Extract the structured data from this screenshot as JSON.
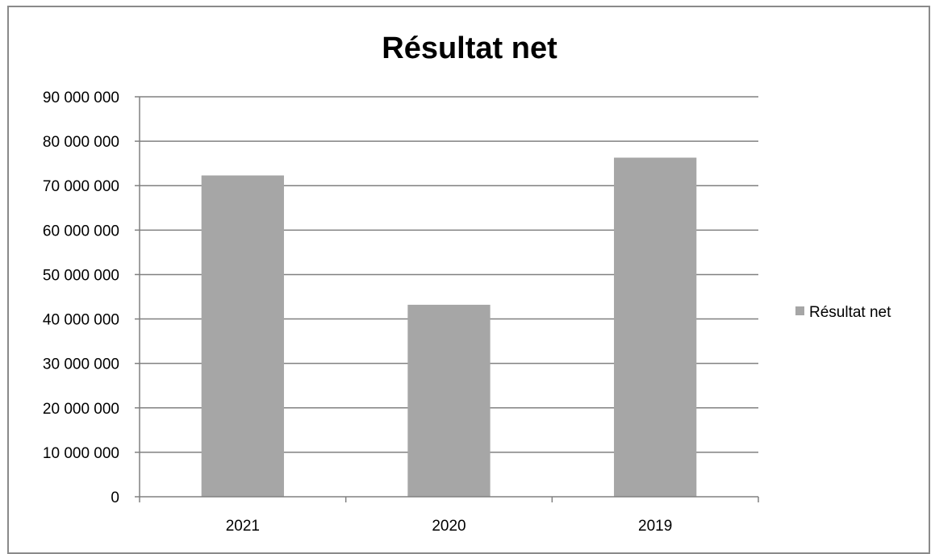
{
  "chart_data": {
    "type": "bar",
    "title": "Résultat net",
    "categories": [
      "2021",
      "2020",
      "2019"
    ],
    "series": [
      {
        "name": "Résultat net",
        "values": [
          72300000,
          43200000,
          76300000
        ],
        "color": "#a6a6a6"
      }
    ],
    "y_ticks": [
      "0",
      "10 000 000",
      "20 000 000",
      "30 000 000",
      "40 000 000",
      "50 000 000",
      "60 000 000",
      "70 000 000",
      "80 000 000",
      "90 000 000"
    ],
    "ylim": [
      0,
      90000000
    ],
    "grid": true,
    "legend_position": "right",
    "xlabel": "",
    "ylabel": ""
  },
  "colors": {
    "bar": "#a6a6a6",
    "grid": "#808080",
    "frame": "#8a8a8a"
  }
}
